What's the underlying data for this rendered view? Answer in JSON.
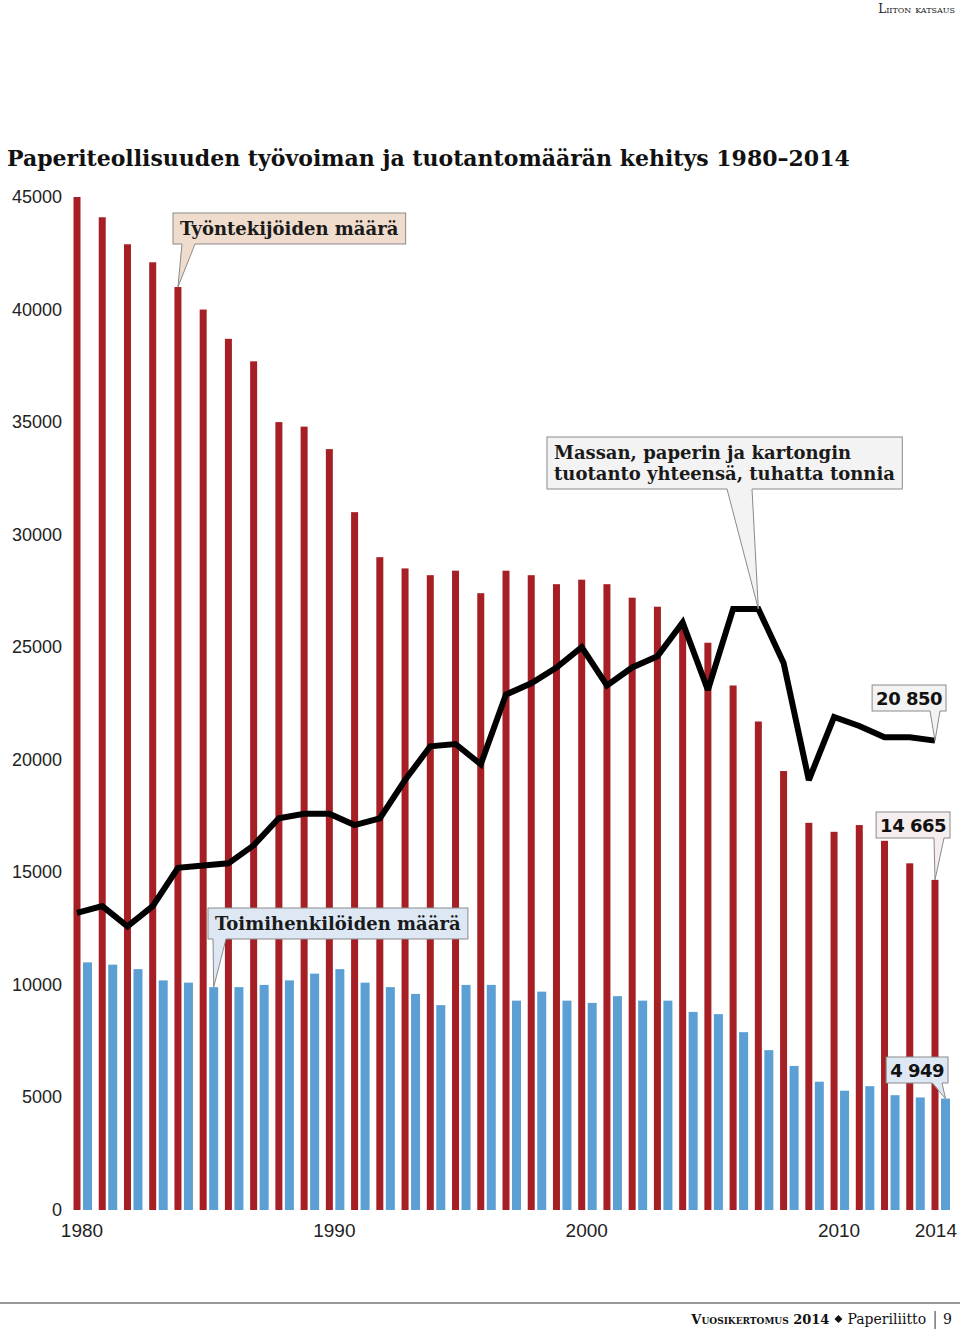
{
  "page": {
    "header": "Liiton katsaus",
    "footer": {
      "publication": "Vuosikertomus 2014",
      "publisher": "Paperiliitto",
      "page_number": 9
    }
  },
  "chart_data": {
    "type": "bar",
    "title": "Paperiteollisuuden työvoiman ja tuotantomäärän kehitys 1980–2014",
    "categories": [
      "1980",
      null,
      null,
      null,
      null,
      null,
      null,
      null,
      null,
      null,
      "1990",
      null,
      null,
      null,
      null,
      null,
      null,
      null,
      null,
      null,
      "2000",
      null,
      null,
      null,
      null,
      null,
      null,
      null,
      null,
      null,
      "2010",
      null,
      null,
      null,
      "2014"
    ],
    "ylim": [
      0,
      45000
    ],
    "yticks": [
      0,
      5000,
      10000,
      15000,
      20000,
      25000,
      30000,
      35000,
      40000,
      45000
    ],
    "grid": false,
    "series": [
      {
        "name": "Työntekijöiden määrä",
        "type": "bar",
        "color": "#a61f24",
        "values": [
          45000,
          44100,
          42900,
          42100,
          41000,
          40000,
          38700,
          37700,
          35000,
          34800,
          33800,
          31000,
          29000,
          28500,
          28200,
          28400,
          27400,
          28400,
          28200,
          27800,
          28000,
          27800,
          27200,
          26800,
          25900,
          25200,
          23300,
          21700,
          19500,
          17200,
          16800,
          17100,
          16400,
          15400,
          14665
        ],
        "value_labels": [
          null,
          null,
          null,
          null,
          null,
          null,
          null,
          null,
          null,
          null,
          null,
          null,
          null,
          null,
          null,
          null,
          null,
          null,
          null,
          null,
          null,
          null,
          null,
          null,
          null,
          null,
          null,
          null,
          null,
          null,
          null,
          null,
          null,
          null,
          "14 665"
        ]
      },
      {
        "name": "Toimihenkilöiden määrä",
        "type": "bar",
        "color": "#5b9fd4",
        "values": [
          11000,
          10900,
          10700,
          10200,
          10100,
          9900,
          9900,
          10000,
          10200,
          10500,
          10700,
          10100,
          9900,
          9600,
          9100,
          10000,
          10000,
          9300,
          9700,
          9300,
          9200,
          9500,
          9300,
          9300,
          8800,
          8700,
          7900,
          7100,
          6400,
          5700,
          5300,
          5500,
          5100,
          5000,
          4949
        ],
        "value_labels": [
          null,
          null,
          null,
          null,
          null,
          null,
          null,
          null,
          null,
          null,
          null,
          null,
          null,
          null,
          null,
          null,
          null,
          null,
          null,
          null,
          null,
          null,
          null,
          null,
          null,
          null,
          null,
          null,
          null,
          null,
          null,
          null,
          null,
          null,
          "4 949"
        ]
      },
      {
        "name": "Massan, paperin ja kartongin tuotanto yhteensä, tuhatta tonnia",
        "type": "line",
        "color": "#000000",
        "values": [
          13200,
          13500,
          12600,
          13500,
          15200,
          15300,
          15400,
          16200,
          17400,
          17600,
          17600,
          17100,
          17400,
          19100,
          20600,
          20700,
          19800,
          22900,
          23400,
          24100,
          25000,
          23300,
          24100,
          24600,
          26100,
          23100,
          26700,
          26700,
          24300,
          19100,
          21900,
          21500,
          21000,
          21000,
          20850
        ],
        "value_labels": [
          null,
          null,
          null,
          null,
          null,
          null,
          null,
          null,
          null,
          null,
          null,
          null,
          null,
          null,
          null,
          null,
          null,
          null,
          null,
          null,
          null,
          null,
          null,
          null,
          null,
          null,
          null,
          null,
          null,
          null,
          null,
          null,
          null,
          null,
          "20 850"
        ]
      }
    ]
  }
}
